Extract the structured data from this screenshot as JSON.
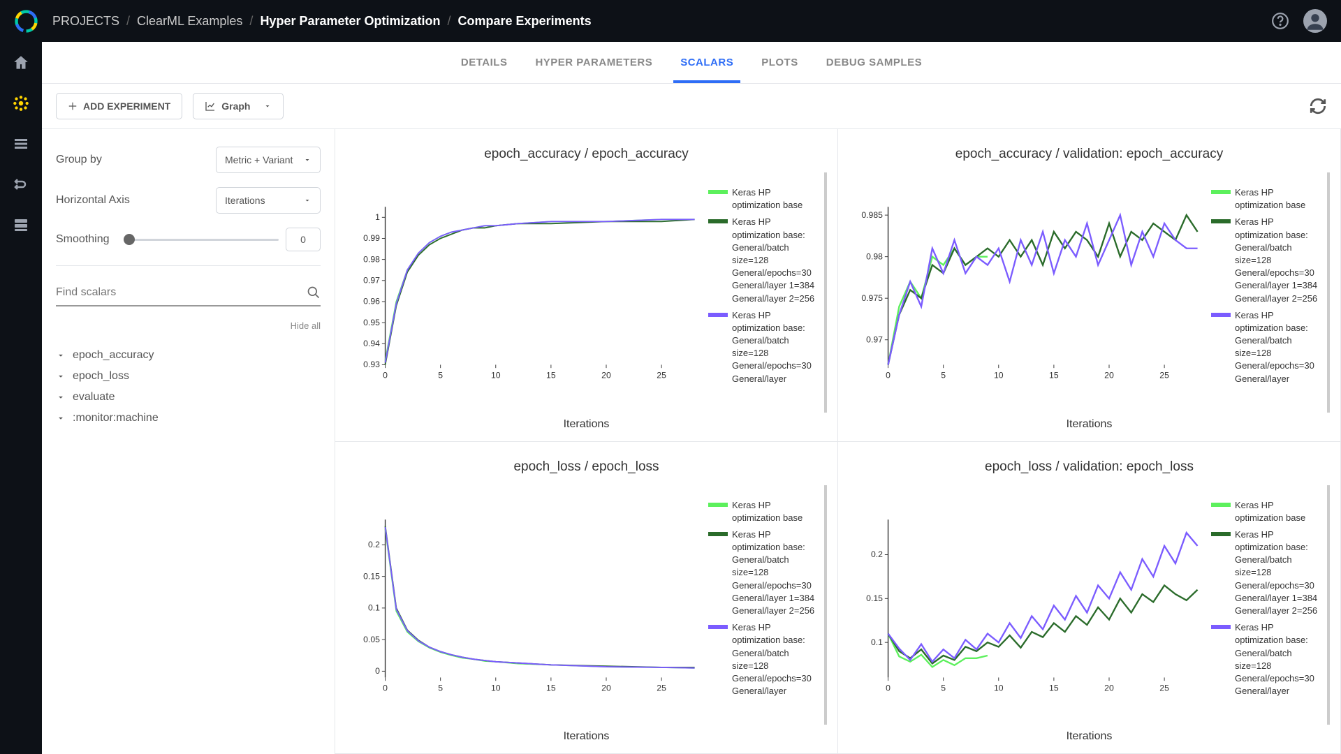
{
  "breadcrumbs": {
    "root": "PROJECTS",
    "project": "ClearML Examples",
    "sub": "Hyper Parameter Optimization",
    "page": "Compare Experiments"
  },
  "tabs": {
    "details": "DETAILS",
    "hyper": "HYPER PARAMETERS",
    "scalars": "SCALARS",
    "plots": "PLOTS",
    "debug": "DEBUG SAMPLES"
  },
  "toolbar": {
    "add_experiment": "ADD EXPERIMENT",
    "view_mode": "Graph"
  },
  "options": {
    "group_by_label": "Group by",
    "group_by_value": "Metric + Variant",
    "haxis_label": "Horizontal Axis",
    "haxis_value": "Iterations",
    "smoothing_label": "Smoothing",
    "smoothing_value": "0",
    "search_placeholder": "Find scalars",
    "hide_all": "Hide all",
    "groups": [
      "epoch_accuracy",
      "epoch_loss",
      "evaluate",
      ":monitor:machine"
    ]
  },
  "legend_series": [
    {
      "color": "#5cf05c",
      "label": "Keras HP optimization base"
    },
    {
      "color": "#2a6b2a",
      "label": "Keras HP optimization base: General/batch size=128 General/epochs=30 General/layer 1=384 General/layer 2=256"
    },
    {
      "color": "#7b5cff",
      "label": "Keras HP optimization base: General/batch size=128 General/epochs=30 General/layer"
    }
  ],
  "charts": [
    {
      "title": "epoch_accuracy / epoch_accuracy",
      "xlabel": "Iterations",
      "xlim": [
        0,
        28
      ],
      "xticks": [
        0,
        5,
        10,
        15,
        20,
        25
      ],
      "ylim": [
        0.93,
        1.005
      ],
      "yticks": [
        0.93,
        0.94,
        0.95,
        0.96,
        0.97,
        0.98,
        0.99,
        1
      ],
      "series": [
        {
          "color": "#5cf05c",
          "width": 2,
          "points": [
            [
              0,
              0.932
            ],
            [
              1,
              0.96
            ],
            [
              2,
              0.975
            ],
            [
              3,
              0.983
            ],
            [
              4,
              0.988
            ],
            [
              5,
              0.991
            ],
            [
              6,
              0.993
            ],
            [
              7,
              0.994
            ],
            [
              8,
              0.995
            ],
            [
              9,
              0.996
            ],
            [
              10,
              0.996
            ],
            [
              12,
              0.997
            ],
            [
              15,
              0.998
            ],
            [
              20,
              0.998
            ],
            [
              25,
              0.999
            ],
            [
              28,
              0.999
            ]
          ]
        },
        {
          "color": "#2a6b2a",
          "width": 2,
          "points": [
            [
              0,
              0.93
            ],
            [
              1,
              0.958
            ],
            [
              2,
              0.974
            ],
            [
              3,
              0.982
            ],
            [
              4,
              0.987
            ],
            [
              5,
              0.99
            ],
            [
              6,
              0.992
            ],
            [
              7,
              0.994
            ],
            [
              8,
              0.995
            ],
            [
              9,
              0.995
            ],
            [
              10,
              0.996
            ],
            [
              12,
              0.997
            ],
            [
              15,
              0.997
            ],
            [
              20,
              0.998
            ],
            [
              25,
              0.998
            ],
            [
              28,
              0.999
            ]
          ]
        },
        {
          "color": "#7b5cff",
          "width": 2,
          "points": [
            [
              0,
              0.931
            ],
            [
              1,
              0.959
            ],
            [
              2,
              0.975
            ],
            [
              3,
              0.983
            ],
            [
              4,
              0.988
            ],
            [
              5,
              0.991
            ],
            [
              6,
              0.993
            ],
            [
              7,
              0.994
            ],
            [
              8,
              0.995
            ],
            [
              9,
              0.996
            ],
            [
              10,
              0.996
            ],
            [
              12,
              0.997
            ],
            [
              15,
              0.998
            ],
            [
              20,
              0.998
            ],
            [
              25,
              0.999
            ],
            [
              28,
              0.999
            ]
          ]
        }
      ]
    },
    {
      "title": "epoch_accuracy / validation: epoch_accuracy",
      "xlabel": "Iterations",
      "xlim": [
        0,
        28
      ],
      "xticks": [
        0,
        5,
        10,
        15,
        20,
        25
      ],
      "ylim": [
        0.967,
        0.986
      ],
      "yticks": [
        0.97,
        0.975,
        0.98,
        0.985
      ],
      "series": [
        {
          "color": "#5cf05c",
          "width": 2.5,
          "points": [
            [
              0,
              0.967
            ],
            [
              1,
              0.974
            ],
            [
              2,
              0.977
            ],
            [
              3,
              0.975
            ],
            [
              4,
              0.98
            ],
            [
              5,
              0.979
            ],
            [
              6,
              0.981
            ],
            [
              7,
              0.979
            ],
            [
              8,
              0.98
            ],
            [
              9,
              0.98
            ]
          ]
        },
        {
          "color": "#2a6b2a",
          "width": 2.5,
          "points": [
            [
              0,
              0.967
            ],
            [
              1,
              0.973
            ],
            [
              2,
              0.976
            ],
            [
              3,
              0.975
            ],
            [
              4,
              0.979
            ],
            [
              5,
              0.978
            ],
            [
              6,
              0.981
            ],
            [
              7,
              0.979
            ],
            [
              8,
              0.98
            ],
            [
              9,
              0.981
            ],
            [
              10,
              0.98
            ],
            [
              11,
              0.982
            ],
            [
              12,
              0.98
            ],
            [
              13,
              0.982
            ],
            [
              14,
              0.979
            ],
            [
              15,
              0.983
            ],
            [
              16,
              0.981
            ],
            [
              17,
              0.983
            ],
            [
              18,
              0.982
            ],
            [
              19,
              0.98
            ],
            [
              20,
              0.984
            ],
            [
              21,
              0.98
            ],
            [
              22,
              0.983
            ],
            [
              23,
              0.982
            ],
            [
              24,
              0.984
            ],
            [
              25,
              0.983
            ],
            [
              26,
              0.982
            ],
            [
              27,
              0.985
            ],
            [
              28,
              0.983
            ]
          ]
        },
        {
          "color": "#7b5cff",
          "width": 2.5,
          "points": [
            [
              0,
              0.967
            ],
            [
              1,
              0.973
            ],
            [
              2,
              0.977
            ],
            [
              3,
              0.974
            ],
            [
              4,
              0.981
            ],
            [
              5,
              0.978
            ],
            [
              6,
              0.982
            ],
            [
              7,
              0.978
            ],
            [
              8,
              0.98
            ],
            [
              9,
              0.979
            ],
            [
              10,
              0.981
            ],
            [
              11,
              0.977
            ],
            [
              12,
              0.982
            ],
            [
              13,
              0.979
            ],
            [
              14,
              0.983
            ],
            [
              15,
              0.978
            ],
            [
              16,
              0.982
            ],
            [
              17,
              0.98
            ],
            [
              18,
              0.984
            ],
            [
              19,
              0.979
            ],
            [
              20,
              0.982
            ],
            [
              21,
              0.985
            ],
            [
              22,
              0.979
            ],
            [
              23,
              0.983
            ],
            [
              24,
              0.98
            ],
            [
              25,
              0.984
            ],
            [
              26,
              0.982
            ],
            [
              27,
              0.981
            ],
            [
              28,
              0.981
            ]
          ]
        }
      ]
    },
    {
      "title": "epoch_loss / epoch_loss",
      "xlabel": "Iterations",
      "xlim": [
        0,
        28
      ],
      "xticks": [
        0,
        5,
        10,
        15,
        20,
        25
      ],
      "ylim": [
        -0.01,
        0.24
      ],
      "yticks": [
        0,
        0.05,
        0.1,
        0.15,
        0.2
      ],
      "series": [
        {
          "color": "#5cf05c",
          "width": 2,
          "points": [
            [
              0,
              0.225
            ],
            [
              1,
              0.095
            ],
            [
              2,
              0.062
            ],
            [
              3,
              0.047
            ],
            [
              4,
              0.037
            ],
            [
              5,
              0.03
            ],
            [
              6,
              0.025
            ],
            [
              7,
              0.021
            ],
            [
              8,
              0.019
            ],
            [
              9,
              0.016
            ],
            [
              10,
              0.015
            ],
            [
              12,
              0.012
            ],
            [
              15,
              0.01
            ],
            [
              20,
              0.007
            ],
            [
              25,
              0.006
            ],
            [
              28,
              0.005
            ]
          ]
        },
        {
          "color": "#2a6b2a",
          "width": 2,
          "points": [
            [
              0,
              0.23
            ],
            [
              1,
              0.1
            ],
            [
              2,
              0.065
            ],
            [
              3,
              0.049
            ],
            [
              4,
              0.038
            ],
            [
              5,
              0.031
            ],
            [
              6,
              0.026
            ],
            [
              7,
              0.022
            ],
            [
              8,
              0.019
            ],
            [
              9,
              0.017
            ],
            [
              10,
              0.015
            ],
            [
              12,
              0.013
            ],
            [
              15,
              0.01
            ],
            [
              20,
              0.008
            ],
            [
              25,
              0.006
            ],
            [
              28,
              0.006
            ]
          ]
        },
        {
          "color": "#7b5cff",
          "width": 2,
          "points": [
            [
              0,
              0.228
            ],
            [
              1,
              0.098
            ],
            [
              2,
              0.064
            ],
            [
              3,
              0.048
            ],
            [
              4,
              0.038
            ],
            [
              5,
              0.031
            ],
            [
              6,
              0.026
            ],
            [
              7,
              0.022
            ],
            [
              8,
              0.019
            ],
            [
              9,
              0.017
            ],
            [
              10,
              0.015
            ],
            [
              12,
              0.013
            ],
            [
              15,
              0.01
            ],
            [
              20,
              0.007
            ],
            [
              25,
              0.006
            ],
            [
              28,
              0.005
            ]
          ]
        }
      ]
    },
    {
      "title": "epoch_loss / validation: epoch_loss",
      "xlabel": "Iterations",
      "xlim": [
        0,
        28
      ],
      "xticks": [
        0,
        5,
        10,
        15,
        20,
        25
      ],
      "ylim": [
        0.06,
        0.24
      ],
      "yticks": [
        0.1,
        0.15,
        0.2
      ],
      "series": [
        {
          "color": "#5cf05c",
          "width": 2.5,
          "points": [
            [
              0,
              0.11
            ],
            [
              1,
              0.084
            ],
            [
              2,
              0.078
            ],
            [
              3,
              0.086
            ],
            [
              4,
              0.072
            ],
            [
              5,
              0.08
            ],
            [
              6,
              0.074
            ],
            [
              7,
              0.082
            ],
            [
              8,
              0.082
            ],
            [
              9,
              0.085
            ]
          ]
        },
        {
          "color": "#2a6b2a",
          "width": 2.5,
          "points": [
            [
              0,
              0.11
            ],
            [
              1,
              0.09
            ],
            [
              2,
              0.082
            ],
            [
              3,
              0.092
            ],
            [
              4,
              0.076
            ],
            [
              5,
              0.085
            ],
            [
              6,
              0.08
            ],
            [
              7,
              0.095
            ],
            [
              8,
              0.09
            ],
            [
              9,
              0.1
            ],
            [
              10,
              0.095
            ],
            [
              11,
              0.108
            ],
            [
              12,
              0.094
            ],
            [
              13,
              0.112
            ],
            [
              14,
              0.106
            ],
            [
              15,
              0.122
            ],
            [
              16,
              0.112
            ],
            [
              17,
              0.13
            ],
            [
              18,
              0.12
            ],
            [
              19,
              0.14
            ],
            [
              20,
              0.126
            ],
            [
              21,
              0.15
            ],
            [
              22,
              0.134
            ],
            [
              23,
              0.155
            ],
            [
              24,
              0.146
            ],
            [
              25,
              0.165
            ],
            [
              26,
              0.155
            ],
            [
              27,
              0.148
            ],
            [
              28,
              0.16
            ]
          ]
        },
        {
          "color": "#7b5cff",
          "width": 2.5,
          "points": [
            [
              0,
              0.11
            ],
            [
              1,
              0.093
            ],
            [
              2,
              0.08
            ],
            [
              3,
              0.098
            ],
            [
              4,
              0.078
            ],
            [
              5,
              0.092
            ],
            [
              6,
              0.082
            ],
            [
              7,
              0.103
            ],
            [
              8,
              0.092
            ],
            [
              9,
              0.11
            ],
            [
              10,
              0.1
            ],
            [
              11,
              0.122
            ],
            [
              12,
              0.105
            ],
            [
              13,
              0.13
            ],
            [
              14,
              0.115
            ],
            [
              15,
              0.142
            ],
            [
              16,
              0.126
            ],
            [
              17,
              0.153
            ],
            [
              18,
              0.134
            ],
            [
              19,
              0.165
            ],
            [
              20,
              0.15
            ],
            [
              21,
              0.18
            ],
            [
              22,
              0.16
            ],
            [
              23,
              0.195
            ],
            [
              24,
              0.175
            ],
            [
              25,
              0.21
            ],
            [
              26,
              0.19
            ],
            [
              27,
              0.225
            ],
            [
              28,
              0.21
            ]
          ]
        }
      ]
    }
  ]
}
